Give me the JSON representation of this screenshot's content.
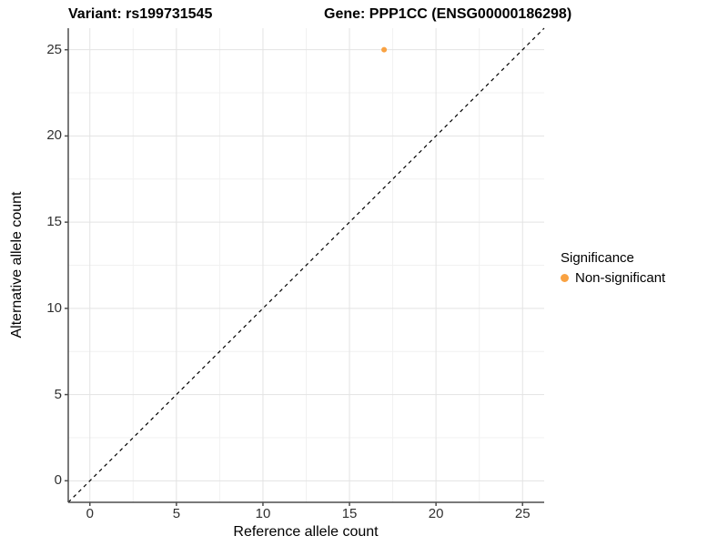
{
  "chart_data": {
    "type": "scatter",
    "title_left": "Variant: rs199731545",
    "title_right": "Gene: PPP1CC (ENSG00000186298)",
    "xlabel": "Reference allele count",
    "ylabel": "Alternative allele count",
    "xlim": [
      -1.25,
      26.25
    ],
    "ylim": [
      -1.25,
      26.25
    ],
    "xticks": [
      0,
      5,
      10,
      15,
      20,
      25
    ],
    "yticks": [
      0,
      5,
      10,
      15,
      20,
      25
    ],
    "x_minor": [
      2.5,
      7.5,
      12.5,
      17.5,
      22.5
    ],
    "y_minor": [
      2.5,
      7.5,
      12.5,
      17.5,
      22.5
    ],
    "grid": "major and minor gridlines, white panel",
    "identity_line": {
      "style": "dashed",
      "color": "#000000",
      "equation": "y = x",
      "from": [
        -1.25,
        -1.25
      ],
      "to": [
        26.25,
        26.25
      ]
    },
    "series": [
      {
        "name": "Non-significant",
        "marker": "circle",
        "color": "#F9A242",
        "points": [
          [
            17,
            25
          ]
        ]
      }
    ],
    "legend": {
      "title": "Significance",
      "position": "right",
      "items": [
        {
          "label": "Non-significant",
          "color": "#F9A242"
        }
      ]
    },
    "colors": {
      "background": "#FFFFFF",
      "grid_major": "#E3E3E3",
      "grid_minor": "#F1F1F1",
      "axis_line": "#4D4D4D",
      "tick_label": "#303030",
      "point": "#F9A242"
    }
  }
}
